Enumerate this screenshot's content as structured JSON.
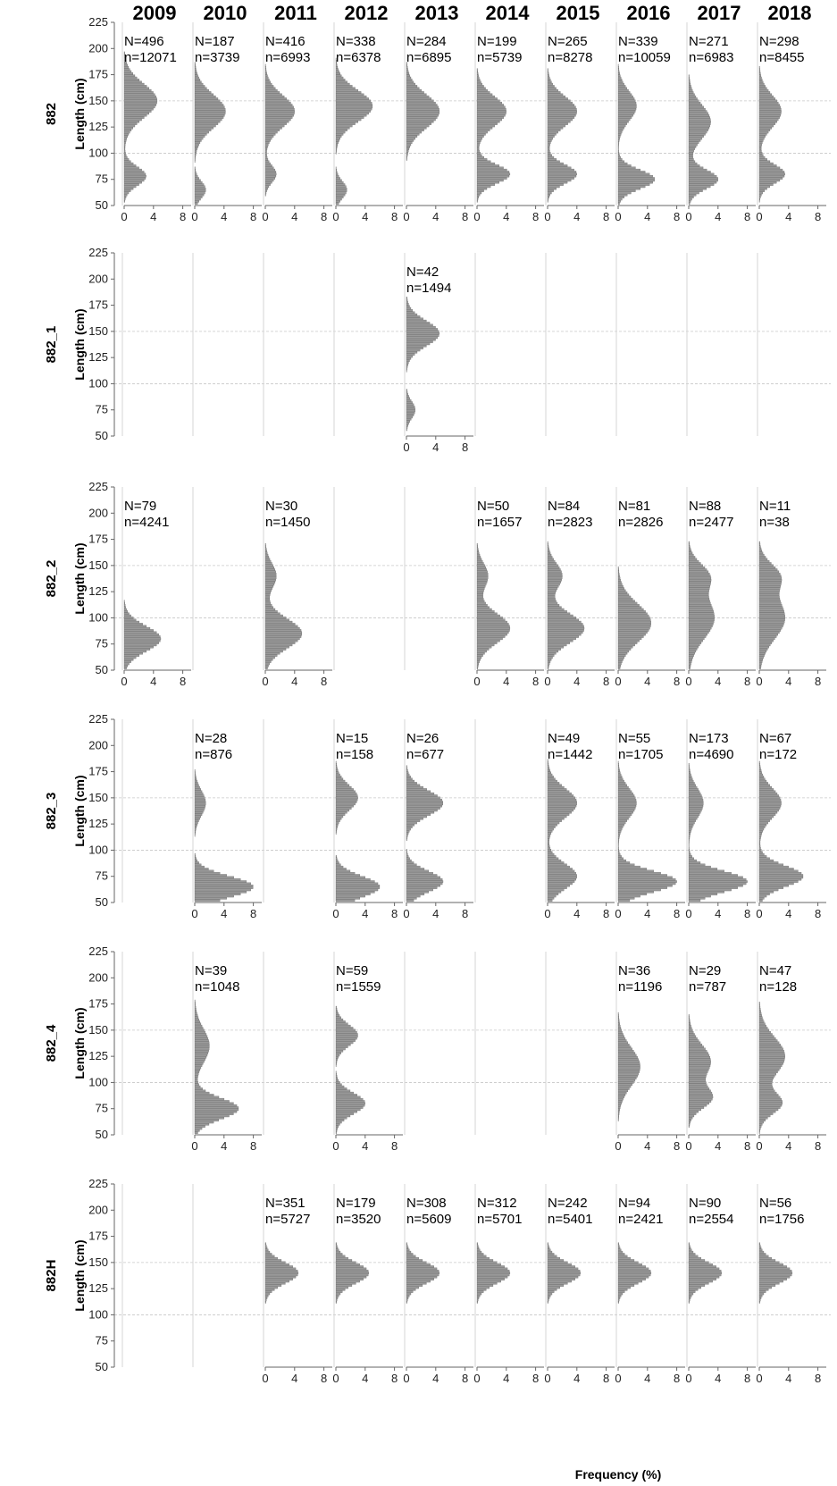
{
  "chart_data": {
    "type": "bar",
    "orientation": "horizontal-histogram-grid",
    "title": "",
    "xlabel": "Frequency (%)",
    "ylabel": "Length (cm)",
    "ylim": [
      50,
      225
    ],
    "y_ticks": [
      50,
      75,
      100,
      125,
      150,
      175,
      200,
      225
    ],
    "x_ticks": [
      0,
      4,
      8
    ],
    "grid": true,
    "years": [
      "2009",
      "2010",
      "2011",
      "2012",
      "2013",
      "2014",
      "2015",
      "2016",
      "2017",
      "2018"
    ],
    "rows": [
      {
        "name": "882",
        "panels": [
          {
            "year": "2009",
            "N": "N=496",
            "n": "n=12071",
            "peaks": [
              [
                150,
                4.5,
                16
              ],
              [
                78,
                3,
                9
              ]
            ]
          },
          {
            "year": "2010",
            "N": "N=187",
            "n": "n=3739",
            "peaks": [
              [
                140,
                4.2,
                16
              ],
              [
                65,
                1.5,
                8
              ]
            ]
          },
          {
            "year": "2011",
            "N": "N=416",
            "n": "n=6993",
            "peaks": [
              [
                140,
                4,
                15
              ],
              [
                80,
                1.5,
                8
              ]
            ]
          },
          {
            "year": "2012",
            "N": "N=338",
            "n": "n=6378",
            "peaks": [
              [
                145,
                5,
                15
              ],
              [
                65,
                1.5,
                8
              ]
            ]
          },
          {
            "year": "2013",
            "N": "N=284",
            "n": "n=6895",
            "peaks": [
              [
                140,
                4.5,
                16
              ]
            ]
          },
          {
            "year": "2014",
            "N": "N=199",
            "n": "n=5739",
            "peaks": [
              [
                140,
                4,
                14
              ],
              [
                80,
                4.5,
                9
              ]
            ]
          },
          {
            "year": "2015",
            "N": "N=265",
            "n": "n=8278",
            "peaks": [
              [
                140,
                4,
                14
              ],
              [
                80,
                4,
                9
              ]
            ]
          },
          {
            "year": "2016",
            "N": "N=339",
            "n": "n=10059",
            "peaks": [
              [
                145,
                2.5,
                14
              ],
              [
                75,
                5,
                9
              ]
            ]
          },
          {
            "year": "2017",
            "N": "N=271",
            "n": "n=6983",
            "peaks": [
              [
                130,
                3,
                16
              ],
              [
                75,
                4,
                9
              ]
            ]
          },
          {
            "year": "2018",
            "N": "N=298",
            "n": "n=8455",
            "peaks": [
              [
                140,
                3,
                15
              ],
              [
                80,
                3.5,
                9
              ]
            ]
          }
        ]
      },
      {
        "name": "882_1",
        "panels": [
          {
            "year": "2013",
            "N": "N=42",
            "n": "n=1494",
            "peaks": [
              [
                148,
                4.5,
                12
              ],
              [
                75,
                1.2,
                8
              ]
            ]
          }
        ]
      },
      {
        "name": "882_2",
        "panels": [
          {
            "year": "2009",
            "N": "N=79",
            "n": "n=4241",
            "peaks": [
              [
                80,
                5,
                12
              ]
            ]
          },
          {
            "year": "2011",
            "N": "N=30",
            "n": "n=1450",
            "peaks": [
              [
                85,
                5,
                14
              ],
              [
                140,
                1.5,
                12
              ]
            ]
          },
          {
            "year": "2014",
            "N": "N=50",
            "n": "n=1657",
            "peaks": [
              [
                90,
                4.5,
                14
              ],
              [
                140,
                1.5,
                12
              ]
            ]
          },
          {
            "year": "2015",
            "N": "N=84",
            "n": "n=2823",
            "peaks": [
              [
                90,
                5,
                14
              ],
              [
                140,
                2,
                12
              ]
            ]
          },
          {
            "year": "2016",
            "N": "N=81",
            "n": "n=2826",
            "peaks": [
              [
                95,
                4.5,
                18
              ]
            ]
          },
          {
            "year": "2017",
            "N": "N=88",
            "n": "n=2477",
            "peaks": [
              [
                100,
                3.5,
                20
              ],
              [
                140,
                2.5,
                12
              ]
            ]
          },
          {
            "year": "2018",
            "N": "N=11",
            "n": "n=38",
            "peaks": [
              [
                100,
                3.5,
                20
              ],
              [
                140,
                2.5,
                12
              ]
            ]
          }
        ]
      },
      {
        "name": "882_3",
        "panels": [
          {
            "year": "2010",
            "N": "N=28",
            "n": "n=876",
            "peaks": [
              [
                65,
                8,
                10
              ],
              [
                145,
                1.5,
                12
              ]
            ]
          },
          {
            "year": "2012",
            "N": "N=15",
            "n": "n=158",
            "peaks": [
              [
                65,
                6,
                10
              ],
              [
                150,
                3,
                12
              ]
            ]
          },
          {
            "year": "2013",
            "N": "N=26",
            "n": "n=677",
            "peaks": [
              [
                70,
                5,
                10
              ],
              [
                145,
                5,
                12
              ]
            ]
          },
          {
            "year": "2015",
            "N": "N=49",
            "n": "n=1442",
            "peaks": [
              [
                75,
                4,
                12
              ],
              [
                145,
                4,
                14
              ]
            ]
          },
          {
            "year": "2016",
            "N": "N=55",
            "n": "n=1705",
            "peaks": [
              [
                70,
                8,
                10
              ],
              [
                145,
                2.5,
                14
              ]
            ]
          },
          {
            "year": "2017",
            "N": "N=173",
            "n": "n=4690",
            "peaks": [
              [
                70,
                8,
                10
              ],
              [
                145,
                2,
                14
              ]
            ]
          },
          {
            "year": "2018",
            "N": "N=67",
            "n": "n=172",
            "peaks": [
              [
                75,
                6,
                10
              ],
              [
                145,
                3,
                14
              ]
            ]
          }
        ]
      },
      {
        "name": "882_4",
        "panels": [
          {
            "year": "2010",
            "N": "N=39",
            "n": "n=1048",
            "peaks": [
              [
                75,
                6,
                10
              ],
              [
                135,
                2,
                16
              ]
            ]
          },
          {
            "year": "2012",
            "N": "N=59",
            "n": "n=1559",
            "peaks": [
              [
                145,
                3,
                10
              ],
              [
                80,
                4,
                10
              ]
            ]
          },
          {
            "year": "2016",
            "N": "N=36",
            "n": "n=1196",
            "peaks": [
              [
                115,
                3,
                18
              ]
            ]
          },
          {
            "year": "2017",
            "N": "N=29",
            "n": "n=787",
            "peaks": [
              [
                120,
                3,
                16
              ],
              [
                85,
                3,
                10
              ]
            ]
          },
          {
            "year": "2018",
            "N": "N=47",
            "n": "n=128",
            "peaks": [
              [
                125,
                3.5,
                18
              ],
              [
                80,
                3,
                10
              ]
            ]
          }
        ]
      },
      {
        "name": "882H",
        "panels": [
          {
            "year": "2011",
            "N": "N=351",
            "n": "n=5727",
            "peaks": [
              [
                140,
                4.5,
                10
              ]
            ]
          },
          {
            "year": "2012",
            "N": "N=179",
            "n": "n=3520",
            "peaks": [
              [
                140,
                4.5,
                10
              ]
            ]
          },
          {
            "year": "2013",
            "N": "N=308",
            "n": "n=5609",
            "peaks": [
              [
                140,
                4.5,
                10
              ]
            ]
          },
          {
            "year": "2014",
            "N": "N=312",
            "n": "n=5701",
            "peaks": [
              [
                140,
                4.5,
                10
              ]
            ]
          },
          {
            "year": "2015",
            "N": "N=242",
            "n": "n=5401",
            "peaks": [
              [
                140,
                4.5,
                10
              ]
            ]
          },
          {
            "year": "2016",
            "N": "N=94",
            "n": "n=2421",
            "peaks": [
              [
                140,
                4.5,
                10
              ]
            ]
          },
          {
            "year": "2017",
            "N": "N=90",
            "n": "n=2554",
            "peaks": [
              [
                140,
                4.5,
                10
              ]
            ]
          },
          {
            "year": "2018",
            "N": "N=56",
            "n": "n=1756",
            "peaks": [
              [
                140,
                4.5,
                10
              ]
            ]
          }
        ]
      }
    ],
    "colors": {
      "bar": "#9a9a9a",
      "bar_edge": "#5f5f5f",
      "grid": "#c8c8c8",
      "axis": "#666666"
    }
  }
}
